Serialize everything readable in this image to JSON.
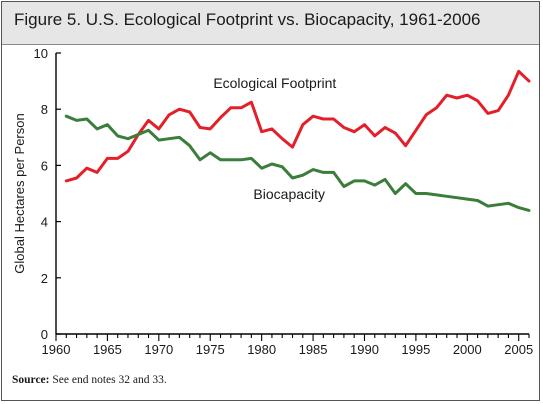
{
  "figure": {
    "title": "Figure 5. U.S. Ecological Footprint vs. Biocapacity, 1961-2006",
    "source_label": "Source:",
    "source_text": " See end notes 32 and 33."
  },
  "colors": {
    "footprint": "#e3202a",
    "biocapacity": "#3b7d3a",
    "header_bg": "#e6e6e6",
    "axis": "#000000"
  },
  "chart_data": {
    "type": "line",
    "title": "Figure 5. U.S. Ecological Footprint vs. Biocapacity, 1961-2006",
    "xlabel": "",
    "ylabel": "Global Hectares per Person",
    "xlim": [
      1960,
      2006
    ],
    "ylim": [
      0,
      10
    ],
    "xticks": [
      1960,
      1965,
      1970,
      1975,
      1980,
      1985,
      1990,
      1995,
      2000,
      2005
    ],
    "yticks": [
      0,
      2,
      4,
      6,
      8,
      10
    ],
    "grid": false,
    "legend": "none",
    "x": [
      1961,
      1962,
      1963,
      1964,
      1965,
      1966,
      1967,
      1968,
      1969,
      1970,
      1971,
      1972,
      1973,
      1974,
      1975,
      1976,
      1977,
      1978,
      1979,
      1980,
      1981,
      1982,
      1983,
      1984,
      1985,
      1986,
      1987,
      1988,
      1989,
      1990,
      1991,
      1992,
      1993,
      1994,
      1995,
      1996,
      1997,
      1998,
      1999,
      2000,
      2001,
      2002,
      2003,
      2004,
      2005,
      2006
    ],
    "series": [
      {
        "name": "Ecological Footprint",
        "color": "#e3202a",
        "values": [
          5.45,
          5.55,
          5.9,
          5.75,
          6.25,
          6.25,
          6.5,
          7.1,
          7.6,
          7.3,
          7.8,
          8.0,
          7.9,
          7.35,
          7.3,
          7.7,
          8.05,
          8.05,
          8.25,
          7.2,
          7.3,
          6.95,
          6.65,
          7.45,
          7.75,
          7.65,
          7.65,
          7.35,
          7.2,
          7.45,
          7.05,
          7.35,
          7.15,
          6.7,
          7.25,
          7.8,
          8.05,
          8.5,
          8.4,
          8.5,
          8.3,
          7.85,
          7.95,
          8.5,
          9.35,
          9.0
        ]
      },
      {
        "name": "Biocapacity",
        "color": "#3b7d3a",
        "values": [
          7.75,
          7.6,
          7.65,
          7.3,
          7.45,
          7.05,
          6.95,
          7.1,
          7.25,
          6.9,
          6.95,
          7.0,
          6.7,
          6.2,
          6.45,
          6.2,
          6.2,
          6.2,
          6.25,
          5.9,
          6.05,
          5.95,
          5.55,
          5.65,
          5.85,
          5.75,
          5.75,
          5.25,
          5.45,
          5.45,
          5.3,
          5.5,
          5.0,
          5.35,
          5.0,
          5.0,
          4.95,
          4.9,
          4.85,
          4.8,
          4.75,
          4.55,
          4.6,
          4.65,
          4.5,
          4.4
        ]
      }
    ]
  }
}
